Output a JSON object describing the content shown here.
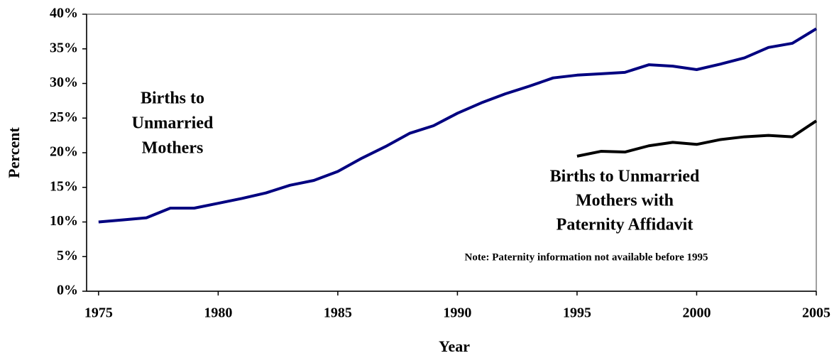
{
  "chart_data": {
    "type": "line",
    "x_label": "Year",
    "y_label": "Percent",
    "x": [
      1975,
      1976,
      1977,
      1978,
      1979,
      1980,
      1981,
      1982,
      1983,
      1984,
      1985,
      1986,
      1987,
      1988,
      1989,
      1990,
      1991,
      1992,
      1993,
      1994,
      1995,
      1996,
      1997,
      1998,
      1999,
      2000,
      2001,
      2002,
      2003,
      2004,
      2005
    ],
    "series": [
      {
        "name": "Births to Unmarried Mothers",
        "color": "#000080",
        "values": [
          10.0,
          10.3,
          10.6,
          12.0,
          12.0,
          12.7,
          13.4,
          14.2,
          15.3,
          16.0,
          17.3,
          19.2,
          20.9,
          22.8,
          23.9,
          25.7,
          27.2,
          28.5,
          29.6,
          30.8,
          31.2,
          31.4,
          31.6,
          32.7,
          32.5,
          32.0,
          32.8,
          33.7,
          35.2,
          35.8,
          37.9
        ]
      },
      {
        "name": "Births to Unmarried Mothers with Paternity Affidavit",
        "color": "#000000",
        "values": [
          null,
          null,
          null,
          null,
          null,
          null,
          null,
          null,
          null,
          null,
          null,
          null,
          null,
          null,
          null,
          null,
          null,
          null,
          null,
          null,
          19.5,
          20.2,
          20.1,
          21.0,
          21.5,
          21.2,
          21.9,
          22.3,
          22.5,
          22.3,
          24.6
        ]
      }
    ],
    "annotations": [
      {
        "lines": [
          "Births to",
          "Unmarried",
          "Mothers"
        ]
      },
      {
        "lines": [
          "Births to Unmarried",
          "Mothers with",
          "Paternity Affidavit"
        ]
      },
      {
        "lines": [
          "Note:  Paternity information not available before 1995"
        ]
      }
    ],
    "xlim": [
      1974.5,
      2005
    ],
    "xticks": [
      1975,
      1980,
      1985,
      1990,
      1995,
      2000,
      2005
    ],
    "ylim": [
      0,
      40
    ],
    "yticks": [
      {
        "value": 0,
        "label": "0%"
      },
      {
        "value": 5,
        "label": "5%"
      },
      {
        "value": 10,
        "label": "10%"
      },
      {
        "value": 15,
        "label": "15%"
      },
      {
        "value": 20,
        "label": "20%"
      },
      {
        "value": 25,
        "label": "25%"
      },
      {
        "value": 30,
        "label": "30%"
      },
      {
        "value": 35,
        "label": "35%"
      },
      {
        "value": 40,
        "label": "40%"
      }
    ],
    "grid": false
  }
}
